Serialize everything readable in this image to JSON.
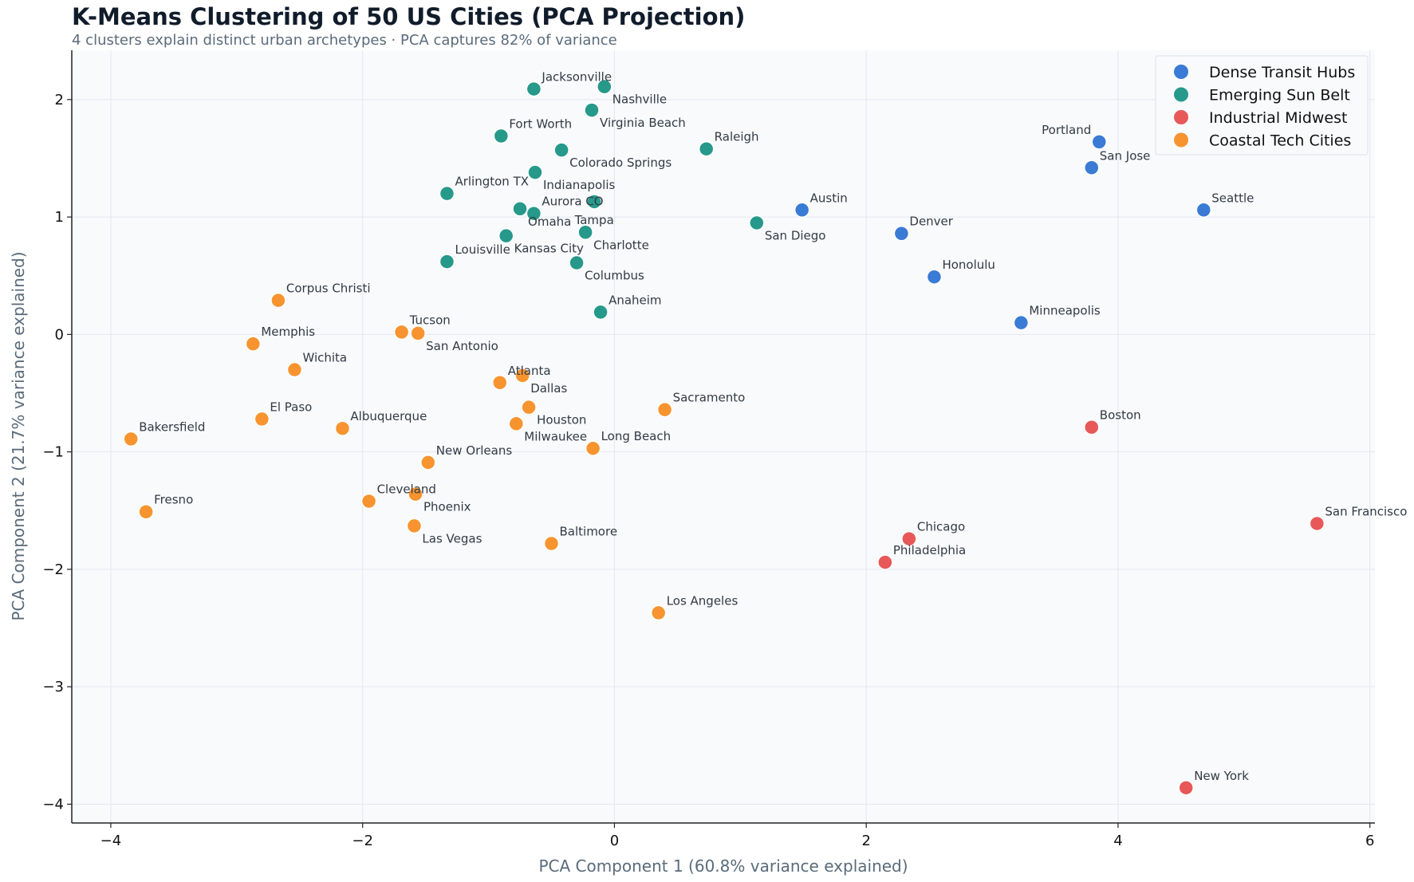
{
  "chart_data": {
    "type": "scatter",
    "title": "K-Means Clustering of 50 US Cities (PCA Projection)",
    "subtitle": "4 clusters explain distinct urban archetypes · PCA captures 82% of variance",
    "xlabel": "PCA Component 1 (60.8% variance explained)",
    "ylabel": "PCA Component 2 (21.7% variance explained)",
    "xlim": [
      -4.31,
      6.04
    ],
    "ylim": [
      -4.16,
      2.42
    ],
    "xticks": [
      -4,
      -2,
      0,
      2,
      4,
      6
    ],
    "yticks": [
      -4,
      -3,
      -2,
      -1,
      0,
      1,
      2
    ],
    "grid": true,
    "legend_position": "top-right",
    "series": [
      {
        "name": "Dense Transit Hubs",
        "color": "#3a7bd5",
        "points": [
          {
            "label": "Portland",
            "x": 3.85,
            "y": 1.64
          },
          {
            "label": "San Jose",
            "x": 3.79,
            "y": 1.42
          },
          {
            "label": "Seattle",
            "x": 4.68,
            "y": 1.06
          },
          {
            "label": "Austin",
            "x": 1.49,
            "y": 1.06
          },
          {
            "label": "Denver",
            "x": 2.28,
            "y": 0.86
          },
          {
            "label": "Honolulu",
            "x": 2.54,
            "y": 0.49
          },
          {
            "label": "Minneapolis",
            "x": 3.23,
            "y": 0.1
          }
        ]
      },
      {
        "name": "Emerging Sun Belt",
        "color": "#26998b",
        "points": [
          {
            "label": "Jacksonville",
            "x": -0.64,
            "y": 2.09
          },
          {
            "label": "Nashville",
            "x": -0.08,
            "y": 2.11
          },
          {
            "label": "Virginia Beach",
            "x": -0.18,
            "y": 1.91
          },
          {
            "label": "Fort Worth",
            "x": -0.9,
            "y": 1.69
          },
          {
            "label": "Colorado Springs",
            "x": -0.42,
            "y": 1.57
          },
          {
            "label": "Raleigh",
            "x": 0.73,
            "y": 1.58
          },
          {
            "label": "Indianapolis",
            "x": -0.63,
            "y": 1.38
          },
          {
            "label": "Arlington TX",
            "x": -1.33,
            "y": 1.2
          },
          {
            "label": "Omaha",
            "x": -0.75,
            "y": 1.07
          },
          {
            "label": "Aurora CO",
            "x": -0.64,
            "y": 1.03
          },
          {
            "label": "Tampa",
            "x": -0.16,
            "y": 1.13
          },
          {
            "label": "Charlotte",
            "x": -0.23,
            "y": 0.87
          },
          {
            "label": "San Diego",
            "x": 1.13,
            "y": 0.95
          },
          {
            "label": "Kansas City",
            "x": -0.86,
            "y": 0.84
          },
          {
            "label": "Louisville",
            "x": -1.33,
            "y": 0.62
          },
          {
            "label": "Columbus",
            "x": -0.3,
            "y": 0.61
          },
          {
            "label": "Anaheim",
            "x": -0.11,
            "y": 0.19
          }
        ]
      },
      {
        "name": "Industrial Midwest",
        "color": "#e85858",
        "points": [
          {
            "label": "Boston",
            "x": 3.79,
            "y": -0.79
          },
          {
            "label": "San Francisco",
            "x": 5.58,
            "y": -1.61
          },
          {
            "label": "Chicago",
            "x": 2.34,
            "y": -1.74
          },
          {
            "label": "Philadelphia",
            "x": 2.15,
            "y": -1.94
          },
          {
            "label": "New York",
            "x": 4.54,
            "y": -3.86
          }
        ]
      },
      {
        "name": "Coastal Tech Cities",
        "color": "#f79430",
        "points": [
          {
            "label": "Corpus Christi",
            "x": -2.67,
            "y": 0.29
          },
          {
            "label": "Memphis",
            "x": -2.87,
            "y": -0.08
          },
          {
            "label": "Wichita",
            "x": -2.54,
            "y": -0.3
          },
          {
            "label": "Tucson",
            "x": -1.69,
            "y": 0.02
          },
          {
            "label": "San Antonio",
            "x": -1.56,
            "y": 0.01
          },
          {
            "label": "Atlanta",
            "x": -0.91,
            "y": -0.41
          },
          {
            "label": "Dallas",
            "x": -0.73,
            "y": -0.35
          },
          {
            "label": "Houston",
            "x": -0.68,
            "y": -0.62
          },
          {
            "label": "Milwaukee",
            "x": -0.78,
            "y": -0.76
          },
          {
            "label": "Sacramento",
            "x": 0.4,
            "y": -0.64
          },
          {
            "label": "El Paso",
            "x": -2.8,
            "y": -0.72
          },
          {
            "label": "Albuquerque",
            "x": -2.16,
            "y": -0.8
          },
          {
            "label": "Bakersfield",
            "x": -3.84,
            "y": -0.89
          },
          {
            "label": "Long Beach",
            "x": -0.17,
            "y": -0.97
          },
          {
            "label": "New Orleans",
            "x": -1.48,
            "y": -1.09
          },
          {
            "label": "Fresno",
            "x": -3.72,
            "y": -1.51
          },
          {
            "label": "Cleveland",
            "x": -1.95,
            "y": -1.42
          },
          {
            "label": "Phoenix",
            "x": -1.58,
            "y": -1.36
          },
          {
            "label": "Las Vegas",
            "x": -1.59,
            "y": -1.63
          },
          {
            "label": "Baltimore",
            "x": -0.5,
            "y": -1.78
          },
          {
            "label": "Los Angeles",
            "x": 0.35,
            "y": -2.37
          }
        ]
      }
    ]
  }
}
